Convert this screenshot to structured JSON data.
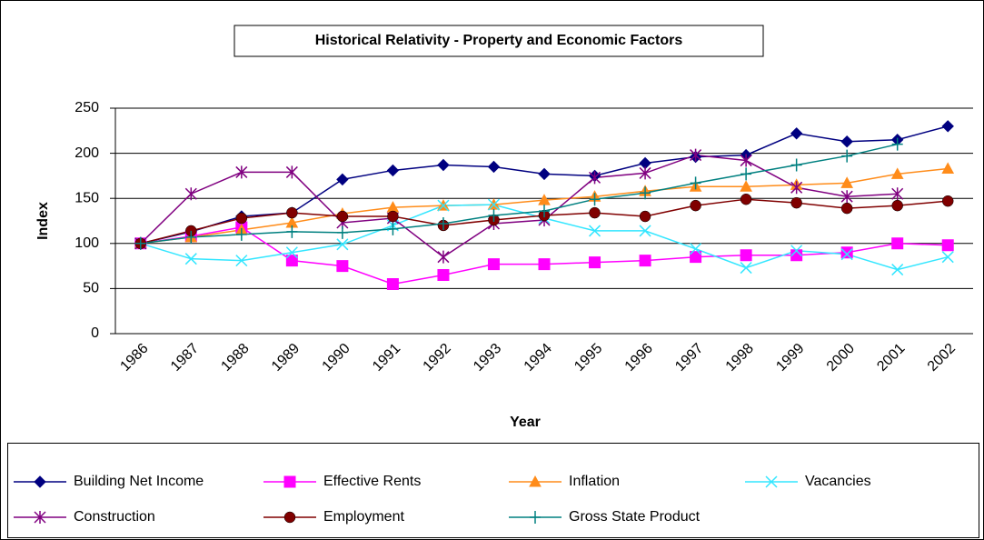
{
  "chart_data": {
    "type": "line",
    "title": "Historical Relativity - Property and Economic Factors",
    "x_label": "Year",
    "y_label": "Index",
    "categories": [
      "1986",
      "1987",
      "1988",
      "1989",
      "1990",
      "1991",
      "1992",
      "1993",
      "1994",
      "1995",
      "1996",
      "1997",
      "1998",
      "1999",
      "2000",
      "2001",
      "2002"
    ],
    "ylim": [
      0,
      250
    ],
    "yticks": [
      0,
      50,
      100,
      150,
      200,
      250
    ],
    "grid": true,
    "legend": "bottom",
    "series": [
      {
        "name": "Building Net Income",
        "color": "#000080",
        "marker": "diamond",
        "values": [
          100,
          113,
          130,
          134,
          171,
          181,
          187,
          185,
          177,
          175,
          189,
          196,
          198,
          222,
          213,
          215,
          230
        ]
      },
      {
        "name": "Effective Rents",
        "color": "#ff00ff",
        "marker": "square",
        "values": [
          100,
          108,
          118,
          81,
          75,
          55,
          65,
          77,
          77,
          79,
          81,
          85,
          87,
          87,
          90,
          100,
          98
        ]
      },
      {
        "name": "Inflation",
        "color": "#ff8c1a",
        "marker": "triangle",
        "values": [
          100,
          107,
          115,
          123,
          133,
          140,
          142,
          143,
          148,
          152,
          158,
          163,
          163,
          165,
          167,
          177,
          183
        ]
      },
      {
        "name": "Vacancies",
        "color": "#33e6ff",
        "marker": "x",
        "values": [
          100,
          83,
          81,
          90,
          99,
          120,
          142,
          143,
          128,
          114,
          114,
          94,
          73,
          92,
          88,
          71,
          85
        ]
      },
      {
        "name": "Construction",
        "color": "#800080",
        "marker": "star",
        "values": [
          100,
          155,
          179,
          179,
          123,
          128,
          85,
          122,
          126,
          173,
          178,
          198,
          192,
          162,
          152,
          155,
          null
        ]
      },
      {
        "name": "Employment",
        "color": "#800000",
        "marker": "circle",
        "values": [
          100,
          114,
          128,
          134,
          130,
          130,
          120,
          126,
          131,
          134,
          130,
          142,
          149,
          145,
          139,
          142,
          147
        ]
      },
      {
        "name": "Gross State Product",
        "color": "#008080",
        "marker": "plus",
        "values": [
          100,
          107,
          110,
          113,
          112,
          116,
          122,
          131,
          136,
          149,
          156,
          167,
          177,
          187,
          197,
          210,
          null
        ]
      }
    ]
  }
}
